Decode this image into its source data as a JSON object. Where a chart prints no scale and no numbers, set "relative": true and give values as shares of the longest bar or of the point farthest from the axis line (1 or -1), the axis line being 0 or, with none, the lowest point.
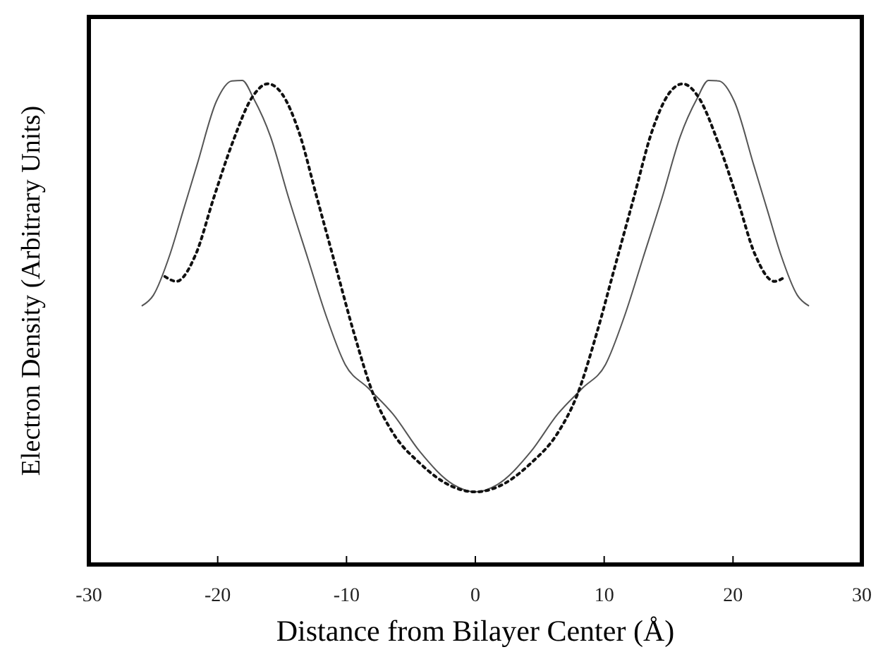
{
  "chart_data": {
    "type": "line",
    "relative": true,
    "xlabel": "Distance from Bilayer Center  (Å)",
    "ylabel": "Electron Density (Arbitrary Units)",
    "xlim": [
      -30,
      30
    ],
    "xticks": [
      -30,
      -20,
      -10,
      0,
      10,
      20,
      30
    ],
    "tick_labels": "x",
    "grid": false,
    "marker": "none",
    "series": [
      {
        "color": "#555555",
        "line_style": "solid",
        "x": [
          -25.9,
          -25.0,
          -23.7,
          -22.7,
          -21.6,
          -20.1,
          -18.9,
          -18.1,
          -17.2,
          -15.9,
          -14.5,
          -13.0,
          -11.6,
          -10.1,
          -8.3,
          -6.4,
          -4.3,
          -1.7,
          0,
          1.7,
          4.3,
          6.4,
          8.3,
          10.1,
          11.6,
          13.0,
          14.5,
          15.9,
          17.2,
          18.1,
          18.9,
          20.1,
          21.6,
          22.7,
          23.7,
          25.0,
          25.9
        ],
        "values": [
          0.534,
          0.556,
          0.641,
          0.729,
          0.826,
          0.957,
          0.999,
          1,
          0.962,
          0.884,
          0.758,
          0.632,
          0.515,
          0.413,
          0.364,
          0.311,
          0.233,
          0.165,
          0.15,
          0.165,
          0.233,
          0.311,
          0.364,
          0.413,
          0.515,
          0.632,
          0.758,
          0.884,
          0.962,
          1,
          0.999,
          0.957,
          0.826,
          0.729,
          0.641,
          0.556,
          0.534
        ]
      },
      {
        "color": "#111111",
        "line_style": "dotted",
        "x": [
          -24.1,
          -23.2,
          -21.7,
          -20.3,
          -18.8,
          -17.4,
          -16.1,
          -15.0,
          -13.7,
          -12.3,
          -10.8,
          -9.4,
          -7.9,
          -6.4,
          -4.3,
          -1.7,
          0,
          1.7,
          4.3,
          6.4,
          7.9,
          9.4,
          10.8,
          12.3,
          13.7,
          15.0,
          16.1,
          17.4,
          18.8,
          20.3,
          21.7,
          23.2,
          24.1
        ],
        "values": [
          0.595,
          0.585,
          0.641,
          0.758,
          0.875,
          0.962,
          0.993,
          0.972,
          0.894,
          0.758,
          0.612,
          0.476,
          0.35,
          0.272,
          0.209,
          0.16,
          0.15,
          0.16,
          0.209,
          0.272,
          0.35,
          0.476,
          0.612,
          0.758,
          0.894,
          0.972,
          0.993,
          0.962,
          0.875,
          0.758,
          0.641,
          0.585,
          0.595
        ]
      }
    ]
  }
}
